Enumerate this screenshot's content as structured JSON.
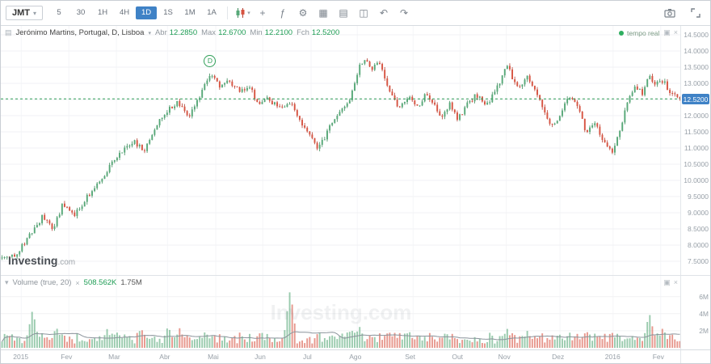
{
  "toolbar": {
    "symbol": "JMT",
    "caret": "▾",
    "timeframes": [
      "5",
      "30",
      "1H",
      "4H",
      "1D",
      "1S",
      "1M",
      "1A"
    ],
    "selected_timeframe": "1D",
    "icon_buttons": [
      {
        "name": "chart-type-candles-icon",
        "shape": "candles",
        "caret": true
      },
      {
        "name": "compare-instrument-icon",
        "glyph": "+"
      },
      {
        "name": "indicators-icon",
        "glyph": "ƒ"
      },
      {
        "name": "settings-gear-icon",
        "glyph": "⚙"
      },
      {
        "name": "chart-layout-icon",
        "glyph": "▦"
      },
      {
        "name": "templates-icon",
        "glyph": "▤"
      },
      {
        "name": "multi-window-icon",
        "glyph": "◫"
      },
      {
        "name": "undo-icon",
        "glyph": "↶"
      },
      {
        "name": "redo-icon",
        "glyph": "↷"
      }
    ],
    "right_icons": [
      {
        "name": "screenshot-camera-icon",
        "shape": "camera"
      },
      {
        "name": "fullscreen-icon",
        "shape": "expand"
      }
    ]
  },
  "ui": {
    "instrument_menu_glyph": "▤",
    "pane_maximize_glyph": "▣",
    "pane_close_glyph": "×"
  },
  "brand": {
    "name": "Investing",
    "suffix": ".com",
    "watermark": "Investing.com"
  },
  "chart_data": {
    "type": "candlestick",
    "title": "Jerónimo Martins, Portugal, D, Lisboa",
    "realtime_label": "tempo real",
    "ohlc": {
      "open_label": "Abr",
      "open": "12.2850",
      "high_label": "Max",
      "high": "12.6700",
      "low_label": "Min",
      "low": "12.2100",
      "close_label": "Fch",
      "close": "12.5200"
    },
    "last_price": 12.52,
    "y_axis": {
      "min": 7.2,
      "max": 14.65,
      "tick_start": 7.5,
      "tick_end": 14.5,
      "tick_step": 0.5,
      "decimals": 4
    },
    "x_labels": [
      {
        "text": "2015",
        "f": 0.03
      },
      {
        "text": "Fev",
        "f": 0.1
      },
      {
        "text": "Mar",
        "f": 0.17
      },
      {
        "text": "Abr",
        "f": 0.245
      },
      {
        "text": "Mai",
        "f": 0.316
      },
      {
        "text": "Jun",
        "f": 0.385
      },
      {
        "text": "Jul",
        "f": 0.456
      },
      {
        "text": "Ago",
        "f": 0.524
      },
      {
        "text": "Set",
        "f": 0.606
      },
      {
        "text": "Out",
        "f": 0.675
      },
      {
        "text": "Nov",
        "f": 0.743
      },
      {
        "text": "Dez",
        "f": 0.822
      },
      {
        "text": "2016",
        "f": 0.9
      },
      {
        "text": "Fev",
        "f": 0.97
      }
    ],
    "price_path_anchors": [
      [
        0.0,
        7.6
      ],
      [
        0.02,
        7.72
      ],
      [
        0.045,
        8.42
      ],
      [
        0.06,
        8.9
      ],
      [
        0.075,
        8.45
      ],
      [
        0.09,
        9.3
      ],
      [
        0.105,
        8.9
      ],
      [
        0.13,
        9.6
      ],
      [
        0.155,
        10.3
      ],
      [
        0.175,
        10.9
      ],
      [
        0.195,
        11.2
      ],
      [
        0.21,
        10.9
      ],
      [
        0.225,
        11.6
      ],
      [
        0.245,
        12.2
      ],
      [
        0.26,
        12.4
      ],
      [
        0.275,
        11.9
      ],
      [
        0.285,
        12.3
      ],
      [
        0.3,
        12.95
      ],
      [
        0.31,
        13.3
      ],
      [
        0.322,
        12.9
      ],
      [
        0.335,
        13.05
      ],
      [
        0.35,
        12.75
      ],
      [
        0.365,
        12.95
      ],
      [
        0.378,
        12.3
      ],
      [
        0.39,
        12.55
      ],
      [
        0.41,
        12.2
      ],
      [
        0.425,
        12.45
      ],
      [
        0.44,
        11.8
      ],
      [
        0.452,
        11.45
      ],
      [
        0.465,
        10.95
      ],
      [
        0.478,
        11.4
      ],
      [
        0.49,
        11.95
      ],
      [
        0.5,
        12.1
      ],
      [
        0.515,
        12.6
      ],
      [
        0.527,
        13.55
      ],
      [
        0.535,
        13.8
      ],
      [
        0.545,
        13.35
      ],
      [
        0.555,
        13.7
      ],
      [
        0.565,
        13.1
      ],
      [
        0.575,
        12.65
      ],
      [
        0.585,
        12.25
      ],
      [
        0.6,
        12.55
      ],
      [
        0.615,
        12.3
      ],
      [
        0.625,
        12.7
      ],
      [
        0.64,
        12.25
      ],
      [
        0.65,
        11.95
      ],
      [
        0.66,
        12.4
      ],
      [
        0.672,
        11.85
      ],
      [
        0.685,
        12.3
      ],
      [
        0.7,
        12.65
      ],
      [
        0.715,
        12.3
      ],
      [
        0.73,
        12.85
      ],
      [
        0.745,
        13.55
      ],
      [
        0.755,
        13.1
      ],
      [
        0.765,
        12.85
      ],
      [
        0.775,
        13.25
      ],
      [
        0.79,
        12.6
      ],
      [
        0.8,
        12.15
      ],
      [
        0.81,
        11.6
      ],
      [
        0.82,
        11.9
      ],
      [
        0.83,
        12.4
      ],
      [
        0.84,
        12.6
      ],
      [
        0.85,
        12.2
      ],
      [
        0.862,
        11.5
      ],
      [
        0.875,
        11.85
      ],
      [
        0.887,
        11.15
      ],
      [
        0.9,
        10.85
      ],
      [
        0.912,
        11.6
      ],
      [
        0.925,
        12.55
      ],
      [
        0.935,
        12.9
      ],
      [
        0.945,
        12.7
      ],
      [
        0.955,
        13.2
      ],
      [
        0.965,
        12.95
      ],
      [
        0.975,
        13.1
      ],
      [
        0.985,
        12.7
      ],
      [
        1.0,
        12.52
      ]
    ],
    "generation": {
      "count": 272,
      "seed": 42,
      "noise": 0.16,
      "wick": 0.085
    },
    "marker": {
      "label": "D",
      "f": 0.307,
      "price": 13.48
    },
    "colors": {
      "up": "#57a878",
      "up_border": "#3d8a5c",
      "down": "#d75442",
      "down_border": "#b23f33",
      "last_line": "#2e9e57",
      "tag_bg": "#3f82c6",
      "grid": "#f1f2f4",
      "vgrid": "#f5f6f8",
      "ma_line": "#8a939b"
    },
    "volume": {
      "indicator_label": "Volume (true, 20)",
      "current": "508.562K",
      "ma_value": "1.75M",
      "axis_ticks": [
        {
          "v": 2000000,
          "text": "2M"
        },
        {
          "v": 4000000,
          "text": "4M"
        },
        {
          "v": 6000000,
          "text": "6M"
        }
      ],
      "max": 7400000,
      "base_min": 500000,
      "base_rand": 1300000,
      "ma_window": 20,
      "spikes": [
        [
          0.045,
          4500000
        ],
        [
          0.08,
          2500000
        ],
        [
          0.155,
          2200000
        ],
        [
          0.205,
          2400000
        ],
        [
          0.245,
          2600000
        ],
        [
          0.262,
          2300000
        ],
        [
          0.3,
          2000000
        ],
        [
          0.425,
          6900000
        ],
        [
          0.515,
          2300000
        ],
        [
          0.527,
          2600000
        ],
        [
          0.6,
          2100000
        ],
        [
          0.655,
          1900000
        ],
        [
          0.745,
          2300000
        ],
        [
          0.775,
          2000000
        ],
        [
          0.862,
          2100000
        ],
        [
          0.9,
          1800000
        ],
        [
          0.955,
          4100000
        ],
        [
          0.975,
          2400000
        ]
      ]
    }
  }
}
